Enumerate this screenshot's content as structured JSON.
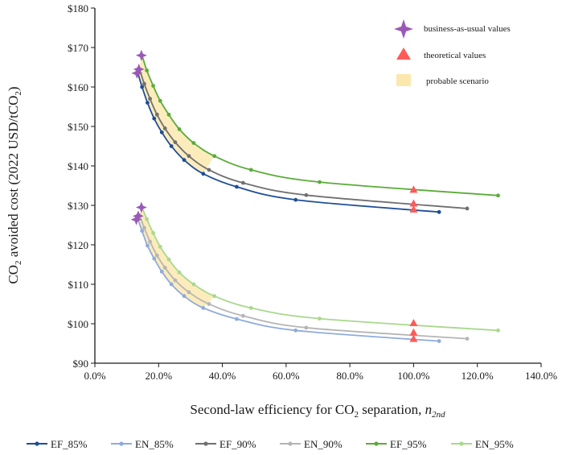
{
  "chart_data": {
    "type": "line",
    "xlabel": "Second-law efficiency for CO₂ separation, n₂nd",
    "xlabel_parts": {
      "main": "Second-law efficiency for CO",
      "sub": "2",
      "after": " separation, ",
      "italic": "n",
      "italic_sub": "2nd"
    },
    "ylabel_parts": {
      "main": "CO",
      "sub": "2",
      "after": " avoided cost   (2022 USD/tCO",
      "sub2": "2",
      "end": ")"
    },
    "xlim": [
      0,
      140
    ],
    "ylim": [
      90,
      180
    ],
    "x_ticks": [
      "0.0%",
      "20.0%",
      "40.0%",
      "60.0%",
      "80.0%",
      "100.0%",
      "120.0%",
      "140.0%"
    ],
    "x_tick_values": [
      0,
      20,
      40,
      60,
      80,
      100,
      120,
      140
    ],
    "y_ticks": [
      "$90",
      "$100",
      "$110",
      "$120",
      "$130",
      "$140",
      "$150",
      "$160",
      "$170",
      "$180"
    ],
    "y_tick_values": [
      90,
      100,
      110,
      120,
      130,
      140,
      150,
      160,
      170,
      180
    ],
    "grid": false,
    "legend_position": "bottom",
    "series": [
      {
        "name": "EF_85%",
        "color": "#1f4e96",
        "x": [
          13.5,
          14.8,
          16.5,
          18.6,
          21.0,
          24.0,
          28.0,
          34.0,
          44.5,
          63.0,
          108.0
        ],
        "y": [
          163.5,
          160.0,
          156.0,
          152.0,
          148.5,
          145.0,
          141.5,
          138.0,
          134.7,
          131.4,
          128.3
        ]
      },
      {
        "name": "EN_85%",
        "color": "#8fabdc",
        "x": [
          13.5,
          14.8,
          16.5,
          18.6,
          21.0,
          24.0,
          28.0,
          34.0,
          44.5,
          63.0,
          108.0
        ],
        "y": [
          126.5,
          123.5,
          119.8,
          116.5,
          113.2,
          110.0,
          107.0,
          104.0,
          101.2,
          98.3,
          95.6
        ]
      },
      {
        "name": "EF_90%",
        "color": "#707070",
        "x": [
          14.0,
          15.5,
          17.3,
          19.5,
          22.0,
          25.2,
          29.5,
          35.8,
          46.5,
          66.3,
          116.8
        ],
        "y": [
          164.5,
          160.8,
          157.0,
          153.0,
          149.5,
          146.0,
          142.5,
          139.0,
          135.7,
          132.6,
          129.2
        ]
      },
      {
        "name": "EN_90%",
        "color": "#b5b5b5",
        "x": [
          14.0,
          15.5,
          17.3,
          19.5,
          22.0,
          25.2,
          29.5,
          35.8,
          46.5,
          66.3,
          116.8
        ],
        "y": [
          127.5,
          124.3,
          120.8,
          117.3,
          114.2,
          111.0,
          108.0,
          105.0,
          102.0,
          99.0,
          96.2
        ]
      },
      {
        "name": "EF_95%",
        "color": "#5aab3a",
        "x": [
          14.8,
          16.3,
          18.3,
          20.5,
          23.2,
          26.5,
          31.0,
          37.5,
          49.0,
          70.5,
          126.5
        ],
        "y": [
          168.0,
          164.2,
          160.3,
          156.5,
          153.0,
          149.3,
          145.8,
          142.5,
          139.0,
          135.9,
          132.5
        ]
      },
      {
        "name": "EN_95%",
        "color": "#a9d88e",
        "x": [
          14.8,
          16.3,
          18.3,
          20.5,
          23.2,
          26.5,
          31.0,
          37.5,
          49.0,
          70.5,
          126.5
        ],
        "y": [
          129.5,
          126.5,
          123.0,
          119.5,
          116.3,
          113.0,
          110.0,
          107.0,
          104.0,
          101.3,
          98.3
        ]
      }
    ],
    "probable_scenario_bands": [
      {
        "lower_series": "EF_85%",
        "upper_series": "EF_95%",
        "x_end": 37.5
      },
      {
        "lower_series": "EN_85%",
        "upper_series": "EN_95%",
        "x_end": 37.5
      }
    ],
    "business_as_usual_points": [
      {
        "x": 13.2,
        "y": 163.5
      },
      {
        "x": 13.8,
        "y": 164.5
      },
      {
        "x": 14.6,
        "y": 168.0
      },
      {
        "x": 13.0,
        "y": 126.4
      },
      {
        "x": 13.6,
        "y": 127.3
      },
      {
        "x": 14.6,
        "y": 129.5
      }
    ],
    "theoretical_points": [
      {
        "x": 100,
        "y": 128.8
      },
      {
        "x": 100,
        "y": 130.3
      },
      {
        "x": 100,
        "y": 133.8
      },
      {
        "x": 100,
        "y": 96.0
      },
      {
        "x": 100,
        "y": 97.6
      },
      {
        "x": 100,
        "y": 100.0
      }
    ],
    "key": [
      {
        "symbol": "star",
        "label": "business-as-usual values",
        "color": "#9b59b6"
      },
      {
        "symbol": "triangle",
        "label": "theoretical values",
        "color": "#ff5a5a"
      },
      {
        "symbol": "box",
        "label": "probable scenario",
        "color": "#fbe6a6"
      }
    ]
  }
}
